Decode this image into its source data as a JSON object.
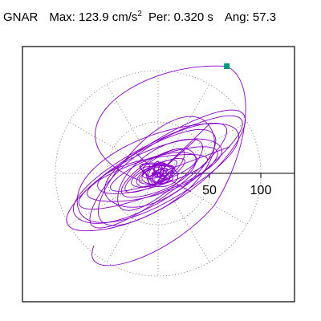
{
  "header": {
    "station": "GNAR",
    "max_label": "Max:",
    "max_value": "123.9",
    "max_unit_base": "cm/s",
    "max_unit_exp": "2",
    "per_label": "Per:",
    "per_value": "0.320",
    "per_unit": "s",
    "ang_label": "Ang:",
    "ang_value": "57.3"
  },
  "chart_data": {
    "type": "polar-orbit",
    "title": "",
    "xlabel": "",
    "ylabel": "",
    "units": "cm/s2",
    "rings": [
      50,
      100
    ],
    "ring_labels": [
      "50",
      "100"
    ],
    "spokes_every_deg": 30,
    "ring_style": "dotted",
    "max_amplitude": 123.9,
    "angle_deg": 57.3,
    "period_s": 0.32,
    "colors": {
      "trace": "#8800cc",
      "marker": "#009980",
      "grid": "#777777",
      "frame": "#000000"
    },
    "loops": [
      {
        "a": 100.0,
        "b": 30,
        "rot": 32,
        "cx": 0,
        "cy": 0
      },
      {
        "a": 93,
        "b": 27,
        "rot": 30,
        "cx": -2,
        "cy": 2
      },
      {
        "a": 86,
        "b": 33,
        "rot": 26,
        "cx": -4,
        "cy": 2
      },
      {
        "a": 80,
        "b": 24,
        "rot": 36,
        "cx": -2,
        "cy": 0
      },
      {
        "a": 74,
        "b": 21,
        "rot": 22,
        "cx": -6,
        "cy": 0
      },
      {
        "a": 70,
        "b": 32,
        "rot": 42,
        "cx": 0,
        "cy": 2
      },
      {
        "a": 66,
        "b": 18,
        "rot": 18,
        "cx": -4,
        "cy": -2
      },
      {
        "a": 60,
        "b": 26,
        "rot": 30,
        "cx": 2,
        "cy": 4
      },
      {
        "a": 55,
        "b": 14,
        "rot": 14,
        "cx": -8,
        "cy": 0
      },
      {
        "a": 50,
        "b": 20,
        "rot": 38,
        "cx": 0,
        "cy": 0
      },
      {
        "a": 44,
        "b": 12,
        "rot": 20,
        "cx": -4,
        "cy": 2
      },
      {
        "a": 40,
        "b": 16,
        "rot": 28,
        "cx": 2,
        "cy": 0
      },
      {
        "a": 34,
        "b": 11,
        "rot": 34,
        "cx": -2,
        "cy": 2
      },
      {
        "a": 28,
        "b": 9,
        "rot": 24,
        "cx": 0,
        "cy": 0
      },
      {
        "a": 22,
        "b": 8,
        "rot": 30,
        "cx": -2,
        "cy": 0
      },
      {
        "a": 16,
        "b": 6,
        "rot": 12,
        "cx": 0,
        "cy": 2
      },
      {
        "a": 12,
        "b": 6,
        "rot": 60,
        "cx": -2,
        "cy": 0
      },
      {
        "a": 9,
        "b": 5,
        "rot": 40,
        "cx": 2,
        "cy": -2
      },
      {
        "a": 6,
        "b": 3,
        "rot": 20,
        "cx": 0,
        "cy": 0
      }
    ],
    "spikes": [
      {
        "x": 50,
        "y": 48
      },
      {
        "x": 70,
        "y": 26
      },
      {
        "x": -22,
        "y": 20
      },
      {
        "x": 32,
        "y": -18
      },
      {
        "x": 38,
        "y": 34
      }
    ],
    "peak_point": {
      "x": 66.9,
      "y": 104.3
    }
  }
}
